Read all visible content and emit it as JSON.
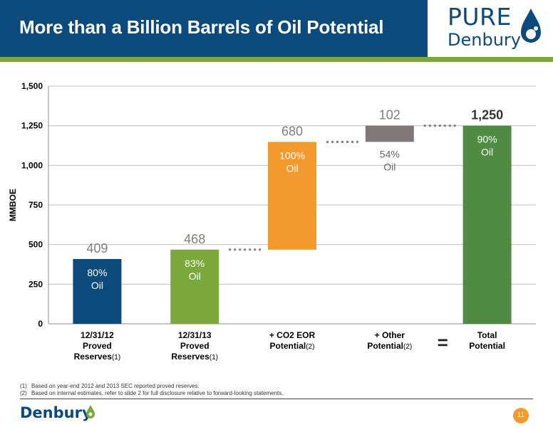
{
  "header": {
    "title": "More than a Billion Barrels of Oil Potential",
    "logo_line1": "PURE",
    "logo_line2": "Denbury"
  },
  "chart_data": {
    "type": "bar",
    "subtype": "waterfall",
    "ylabel": "MMBOE",
    "ylim": [
      0,
      1500
    ],
    "yticks": [
      0,
      250,
      500,
      750,
      1000,
      1250,
      1500
    ],
    "ytick_labels": [
      "0",
      "250",
      "500",
      "750",
      "1,000",
      "1,250",
      "1,500"
    ],
    "grid": true,
    "categories": [
      {
        "lines": [
          "12/31/12",
          "Proved",
          "Reserves"
        ],
        "sup": "(1)"
      },
      {
        "lines": [
          "12/31/13",
          "Proved",
          "Reserves"
        ],
        "sup": "(1)"
      },
      {
        "lines": [
          "+ CO2 EOR",
          "Potential"
        ],
        "sup": "(2)"
      },
      {
        "lines": [
          "+ Other",
          "Potential"
        ],
        "sup": "(2)"
      },
      {
        "lines": [
          "Total",
          "Potential"
        ],
        "sup": ""
      }
    ],
    "bars": [
      {
        "base": 0,
        "value": 409,
        "value_label": "409",
        "pct_label": "80%",
        "oil_label": "Oil",
        "color": "#0b4a7b",
        "bold": false
      },
      {
        "base": 0,
        "value": 468,
        "value_label": "468",
        "pct_label": "83%",
        "oil_label": "Oil",
        "color": "#7aa83a",
        "bold": false
      },
      {
        "base": 468,
        "value": 680,
        "value_label": "680",
        "pct_label": "100%",
        "oil_label": "Oil",
        "color": "#f39a2e",
        "bold": false
      },
      {
        "base": 1148,
        "value": 102,
        "value_label": "102",
        "pct_label": "54%",
        "oil_label": "Oil",
        "color": "#7f7778",
        "bold": false
      },
      {
        "base": 0,
        "value": 1250,
        "value_label": "1,250",
        "pct_label": "90%",
        "oil_label": "Oil",
        "color": "#4f8b43",
        "bold": true
      }
    ],
    "equals_sign": "="
  },
  "footnotes": [
    {
      "num": "(1)",
      "text": "Based on year-end 2012 and 2013 SEC reported proved reserves."
    },
    {
      "num": "(2)",
      "text": "Based on internal estimates, refer to slide 2 for full disclosure relative to forward-looking statements."
    }
  ],
  "footer": {
    "logo": "Denbury",
    "page_number": "11"
  },
  "colors": {
    "brand_blue": "#0b4a7b",
    "brand_green": "#7aa83a",
    "accent_orange": "#f39a2e"
  }
}
